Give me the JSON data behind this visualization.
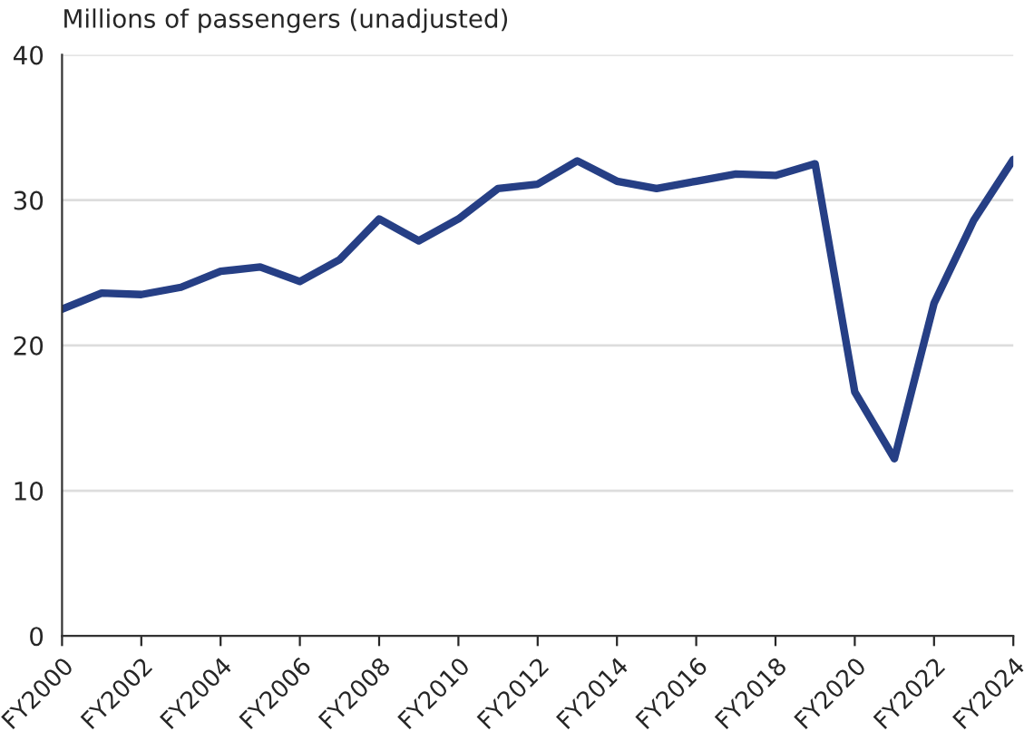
{
  "chart_data": {
    "type": "line",
    "title": "Millions of passengers (unadjusted)",
    "categories": [
      "FY2000",
      null,
      "FY2002",
      null,
      "FY2004",
      null,
      "FY2006",
      null,
      "FY2008",
      null,
      "FY2010",
      null,
      "FY2012",
      null,
      "FY2014",
      null,
      "FY2016",
      null,
      "FY2018",
      null,
      "FY2020",
      null,
      "FY2022",
      null,
      "FY2024"
    ],
    "series": [
      {
        "color": "#263f85",
        "values": [
          22.5,
          23.6,
          23.5,
          24.0,
          25.1,
          25.4,
          24.4,
          25.9,
          28.7,
          27.2,
          28.7,
          30.8,
          31.1,
          32.7,
          31.3,
          30.8,
          31.3,
          31.8,
          31.7,
          32.5,
          16.8,
          12.2,
          22.9,
          28.6,
          32.8
        ]
      }
    ],
    "ylim": [
      0,
      40
    ],
    "yticks": [
      0,
      10,
      20,
      30,
      40
    ],
    "grid": "y",
    "legend": false,
    "marker": "none",
    "line_style": "solid"
  }
}
